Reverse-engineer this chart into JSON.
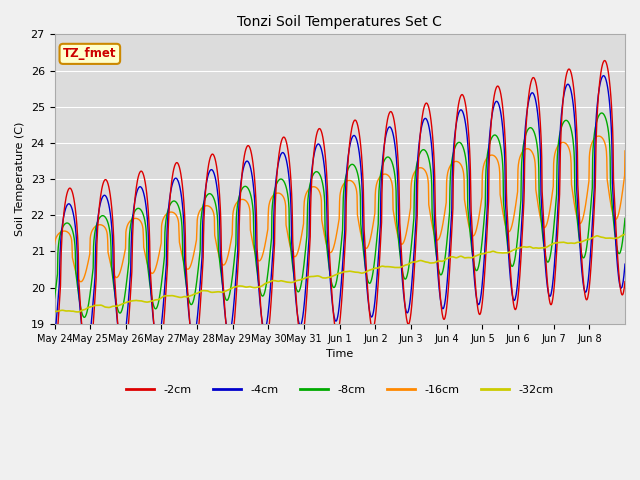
{
  "title": "Tonzi Soil Temperatures Set C",
  "xlabel": "Time",
  "ylabel": "Soil Temperature (C)",
  "ylim": [
    19.0,
    27.0
  ],
  "yticks": [
    19.0,
    20.0,
    21.0,
    22.0,
    23.0,
    24.0,
    25.0,
    26.0,
    27.0
  ],
  "xtick_labels": [
    "May 24",
    "May 25",
    "May 26",
    "May 27",
    "May 28",
    "May 29",
    "May 30",
    "May 31",
    "Jun 1",
    "Jun 2",
    "Jun 3",
    "Jun 4",
    "Jun 5",
    "Jun 6",
    "Jun 7",
    "Jun 8"
  ],
  "colors": {
    "-2cm": "#dd0000",
    "-4cm": "#0000cc",
    "-8cm": "#00aa00",
    "-16cm": "#ff8800",
    "-32cm": "#cccc00"
  },
  "legend_label": "TZ_fmet",
  "legend_bg": "#ffffcc",
  "legend_border": "#cc8800",
  "fig_bg": "#f0f0f0",
  "plot_bg": "#dcdcdc",
  "n_days": 16,
  "samples_per_day": 96,
  "base_2": 20.15,
  "amp_2": 2.5,
  "phase_2": -1.1,
  "trend_2": 0.185,
  "base_4": 20.2,
  "amp_4": 2.2,
  "phase_4": -0.9,
  "trend_4": 0.175,
  "base_8": 20.4,
  "amp_8": 1.55,
  "phase_8": -0.55,
  "trend_8": 0.16,
  "base_16": 20.8,
  "amp_16": 0.72,
  "phase_16": 0.05,
  "trend_16": 0.145,
  "base_32": 19.3,
  "amp_32": 0.05,
  "phase_32": 0.5,
  "trend_32": 0.135
}
